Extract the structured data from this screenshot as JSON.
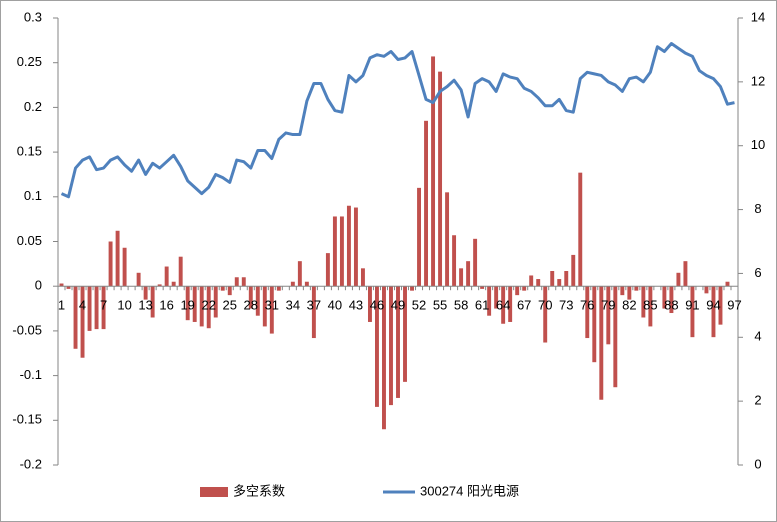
{
  "chart_data": {
    "type": "bar-line",
    "categories": [
      1,
      null,
      null,
      4,
      null,
      null,
      7,
      null,
      null,
      10,
      null,
      null,
      13,
      null,
      null,
      16,
      null,
      null,
      19,
      null,
      null,
      22,
      null,
      null,
      25,
      null,
      null,
      28,
      null,
      null,
      31,
      null,
      null,
      34,
      null,
      null,
      37,
      null,
      null,
      40,
      null,
      null,
      43,
      null,
      null,
      46,
      null,
      null,
      49,
      null,
      null,
      52,
      null,
      null,
      55,
      null,
      null,
      58,
      null,
      null,
      61,
      null,
      null,
      64,
      null,
      null,
      67,
      null,
      null,
      70,
      null,
      null,
      73,
      null,
      null,
      76,
      null,
      null,
      79,
      null,
      null,
      82,
      null,
      null,
      85,
      null,
      null,
      88,
      null,
      null,
      91,
      null,
      null,
      94,
      null,
      null,
      97
    ],
    "series": [
      {
        "name": "多空系数",
        "type": "bar",
        "color": "#c0504d",
        "values": [
          0.003,
          -0.003,
          -0.07,
          -0.08,
          -0.05,
          -0.048,
          -0.048,
          0.05,
          0.062,
          0.043,
          0,
          0.015,
          -0.015,
          -0.035,
          0.002,
          0.022,
          0.005,
          0.033,
          -0.038,
          -0.04,
          -0.045,
          -0.047,
          -0.035,
          -0.005,
          -0.01,
          0.01,
          0.01,
          -0.025,
          -0.033,
          -0.045,
          -0.053,
          -0.005,
          0,
          0.005,
          0.028,
          0.005,
          -0.058,
          0,
          0.037,
          0.078,
          0.078,
          0.09,
          0.088,
          0.02,
          -0.04,
          -0.135,
          -0.16,
          -0.133,
          -0.125,
          -0.107,
          -0.005,
          0.11,
          0.185,
          0.257,
          0.24,
          0.105,
          0.057,
          0.02,
          0.028,
          0.053,
          -0.003,
          -0.033,
          -0.025,
          -0.042,
          -0.04,
          -0.01,
          -0.005,
          0.012,
          0.008,
          -0.063,
          0.017,
          0.008,
          0.017,
          0.035,
          0.127,
          -0.058,
          -0.085,
          -0.127,
          -0.065,
          -0.113,
          -0.01,
          -0.015,
          -0.005,
          -0.035,
          -0.045,
          0,
          -0.025,
          -0.03,
          0.015,
          0.028,
          -0.057,
          0,
          -0.008,
          -0.057,
          -0.043,
          0.005,
          0
        ]
      },
      {
        "name": "300274 阳光电源",
        "type": "line",
        "axis": "y2",
        "color": "#4f81bd",
        "values": [
          8.5,
          8.4,
          9.3,
          9.55,
          9.65,
          9.25,
          9.3,
          9.55,
          9.65,
          9.4,
          9.2,
          9.55,
          9.1,
          9.45,
          9.3,
          9.5,
          9.7,
          9.35,
          8.9,
          8.7,
          8.5,
          8.7,
          9.1,
          9.0,
          8.85,
          9.55,
          9.5,
          9.3,
          9.85,
          9.85,
          9.6,
          10.2,
          10.4,
          10.35,
          10.35,
          11.4,
          11.95,
          11.95,
          11.45,
          11.1,
          11.05,
          12.2,
          12.0,
          12.2,
          12.75,
          12.85,
          12.8,
          12.95,
          12.7,
          12.75,
          12.95,
          12.2,
          11.45,
          11.35,
          11.7,
          11.85,
          12.05,
          11.75,
          10.9,
          11.95,
          12.1,
          12.0,
          11.7,
          12.25,
          12.15,
          12.1,
          11.8,
          11.7,
          11.5,
          11.25,
          11.25,
          11.45,
          11.1,
          11.05,
          12.1,
          12.3,
          12.25,
          12.2,
          12.0,
          11.9,
          11.7,
          12.1,
          12.15,
          12.0,
          12.3,
          13.1,
          12.95,
          13.2,
          13.05,
          12.9,
          12.8,
          12.35,
          12.2,
          12.1,
          11.85,
          11.3,
          11.35
        ]
      }
    ],
    "ylim": [
      -0.2,
      0.3
    ],
    "yticks": [
      0.3,
      0.25,
      0.2,
      0.15,
      0.1,
      0.05,
      0,
      -0.05,
      -0.1,
      -0.15,
      -0.2
    ],
    "y2lim": [
      0,
      14
    ],
    "y2ticks": [
      14,
      12,
      10,
      8,
      6,
      4,
      2,
      0
    ],
    "legend": "bottom",
    "grid": false
  }
}
